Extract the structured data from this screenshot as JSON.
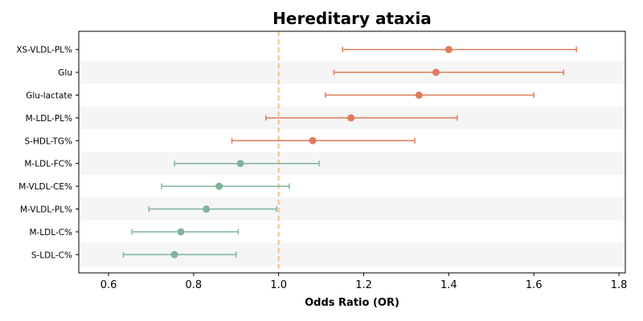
{
  "chart_data": {
    "type": "forest",
    "title": "Hereditary ataxia",
    "xlabel": "Odds Ratio (OR)",
    "ylabel": "",
    "xlim": [
      0.53,
      1.815
    ],
    "xticks": [
      0.6,
      0.8,
      1.0,
      1.2,
      1.4,
      1.6,
      1.8
    ],
    "xtick_labels": [
      "0.6",
      "0.8",
      "1.0",
      "1.2",
      "1.4",
      "1.6",
      "1.8"
    ],
    "reference_line": 1.0,
    "reference_color": "#f0c27b",
    "band_color": "#f5f5f5",
    "colors": {
      "risk": "#e07b5a",
      "protective": "#7fb49b"
    },
    "grid": false,
    "items": [
      {
        "label": "XS-VLDL-PL%",
        "or": 1.4,
        "lower": 1.15,
        "upper": 1.7,
        "group": "risk"
      },
      {
        "label": "Glu",
        "or": 1.37,
        "lower": 1.13,
        "upper": 1.67,
        "group": "risk"
      },
      {
        "label": "Glu-lactate",
        "or": 1.33,
        "lower": 1.11,
        "upper": 1.6,
        "group": "risk"
      },
      {
        "label": "M-LDL-PL%",
        "or": 1.17,
        "lower": 0.97,
        "upper": 1.42,
        "group": "risk"
      },
      {
        "label": "S-HDL-TG%",
        "or": 1.08,
        "lower": 0.89,
        "upper": 1.32,
        "group": "risk"
      },
      {
        "label": "M-LDL-FC%",
        "or": 0.91,
        "lower": 0.755,
        "upper": 1.095,
        "group": "protective"
      },
      {
        "label": "M-VLDL-CE%",
        "or": 0.86,
        "lower": 0.725,
        "upper": 1.025,
        "group": "protective"
      },
      {
        "label": "M-VLDL-PL%",
        "or": 0.83,
        "lower": 0.695,
        "upper": 0.995,
        "group": "protective"
      },
      {
        "label": "M-LDL-C%",
        "or": 0.77,
        "lower": 0.655,
        "upper": 0.905,
        "group": "protective"
      },
      {
        "label": "S-LDL-C%",
        "or": 0.755,
        "lower": 0.635,
        "upper": 0.9,
        "group": "protective"
      }
    ]
  }
}
